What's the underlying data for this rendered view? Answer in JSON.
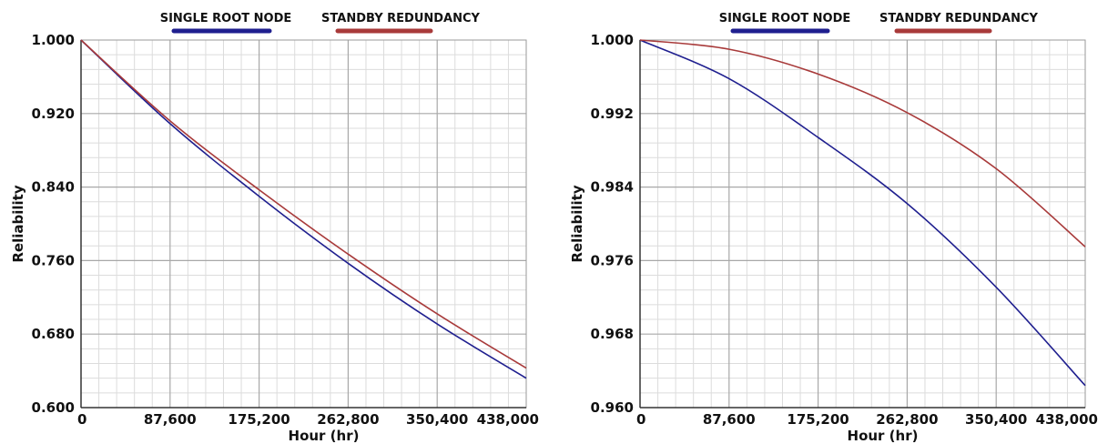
{
  "chart_data": [
    {
      "type": "line",
      "xlabel": "Hour (hr)",
      "ylabel": "Reliability",
      "xlim": [
        0,
        438000
      ],
      "ylim": [
        0.6,
        1.0
      ],
      "x_ticks": [
        "0",
        "87,600",
        "175,200",
        "262,800",
        "350,400",
        "438,000"
      ],
      "y_ticks": [
        "0.600",
        "0.680",
        "0.760",
        "0.840",
        "0.920",
        "1.000"
      ],
      "grid": true,
      "legend_position": "top",
      "x": [
        0,
        87600,
        175200,
        262800,
        350400,
        438000
      ],
      "series": [
        {
          "name": "SINGLE ROOT NODE",
          "color": "#1f1f8f",
          "values": [
            1.0,
            0.909,
            0.83,
            0.757,
            0.691,
            0.632
          ]
        },
        {
          "name": "STANDBY REDUNDANCY",
          "color": "#a83a3a",
          "values": [
            1.0,
            0.912,
            0.837,
            0.767,
            0.702,
            0.643
          ]
        }
      ]
    },
    {
      "type": "line",
      "xlabel": "Hour (hr)",
      "ylabel": "Reliability",
      "xlim": [
        0,
        438000
      ],
      "ylim": [
        0.96,
        1.0
      ],
      "x_ticks": [
        "0",
        "87,600",
        "175,200",
        "262,800",
        "350,400",
        "438,000"
      ],
      "y_ticks": [
        "0.960",
        "0.968",
        "0.976",
        "0.984",
        "0.992",
        "1.000"
      ],
      "grid": true,
      "legend_position": "top",
      "x": [
        0,
        87600,
        175200,
        262800,
        350400,
        438000
      ],
      "series": [
        {
          "name": "SINGLE ROOT NODE",
          "color": "#1f1f8f",
          "values": [
            1.0,
            0.9958,
            0.9894,
            0.9822,
            0.9731,
            0.9624
          ]
        },
        {
          "name": "STANDBY REDUNDANCY",
          "color": "#a83a3a",
          "values": [
            1.0,
            0.999,
            0.9963,
            0.9921,
            0.986,
            0.9775
          ]
        }
      ]
    }
  ]
}
